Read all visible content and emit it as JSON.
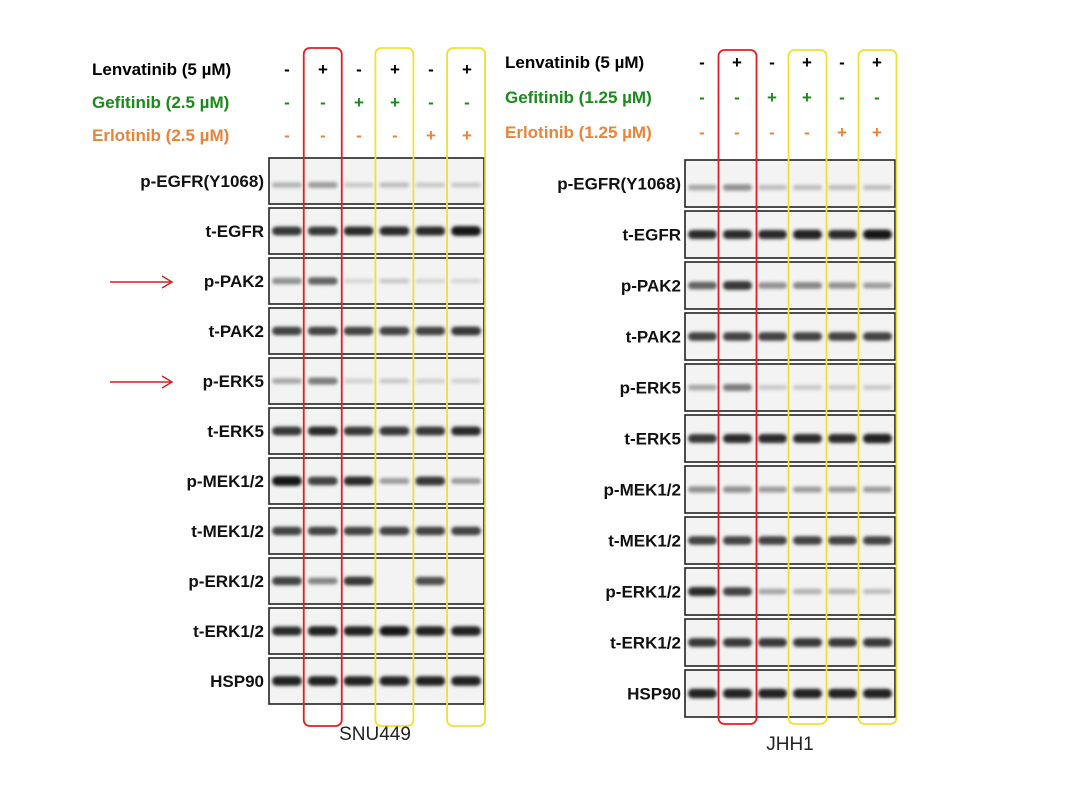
{
  "figure": {
    "colors": {
      "lenvatinib": "#000000",
      "gefitinib": "#1a8a1a",
      "erlotinib": "#e8843a",
      "red_box": "#e02020",
      "yellow_box": "#f0e030",
      "arrow": "#d02020"
    },
    "panels": [
      {
        "cell_line": "SNU449",
        "treatments": [
          {
            "label": "Lenvatinib (5 µM)",
            "color": "lenvatinib",
            "signs": [
              "-",
              "+",
              "-",
              "+",
              "-",
              "+"
            ]
          },
          {
            "label": "Gefitinib (2.5 µM)",
            "color": "gefitinib",
            "signs": [
              "-",
              "-",
              "+",
              "+",
              "-",
              "-"
            ]
          },
          {
            "label": "Erlotinib (2.5 µM)",
            "color": "erlotinib",
            "signs": [
              "-",
              "-",
              "-",
              "-",
              "+",
              "+"
            ]
          }
        ],
        "blots": [
          {
            "label": "p-EGFR(Y1068)",
            "intensity": [
              0.25,
              0.35,
              0.15,
              0.2,
              0.15,
              0.15
            ]
          },
          {
            "label": "t-EGFR",
            "intensity": [
              0.8,
              0.8,
              0.85,
              0.85,
              0.85,
              0.95
            ]
          },
          {
            "label": "p-PAK2",
            "intensity": [
              0.4,
              0.6,
              0.1,
              0.15,
              0.1,
              0.1
            ]
          },
          {
            "label": "t-PAK2",
            "intensity": [
              0.75,
              0.75,
              0.75,
              0.75,
              0.75,
              0.8
            ]
          },
          {
            "label": "p-ERK5",
            "intensity": [
              0.3,
              0.5,
              0.12,
              0.15,
              0.12,
              0.12
            ]
          },
          {
            "label": "t-ERK5",
            "intensity": [
              0.8,
              0.85,
              0.8,
              0.8,
              0.8,
              0.85
            ]
          },
          {
            "label": "p-MEK1/2",
            "intensity": [
              0.95,
              0.75,
              0.85,
              0.35,
              0.8,
              0.35
            ]
          },
          {
            "label": "t-MEK1/2",
            "intensity": [
              0.75,
              0.75,
              0.75,
              0.75,
              0.75,
              0.75
            ]
          },
          {
            "label": "p-ERK1/2",
            "intensity": [
              0.75,
              0.45,
              0.8,
              0.0,
              0.7,
              0.0
            ]
          },
          {
            "label": "t-ERK1/2",
            "intensity": [
              0.85,
              0.9,
              0.9,
              0.95,
              0.9,
              0.9
            ]
          },
          {
            "label": "HSP90",
            "intensity": [
              0.9,
              0.9,
              0.9,
              0.9,
              0.9,
              0.9
            ]
          }
        ],
        "arrows_at": [
          "p-PAK2",
          "p-ERK5"
        ]
      },
      {
        "cell_line": "JHH1",
        "treatments": [
          {
            "label": "Lenvatinib (5 µM)",
            "color": "lenvatinib",
            "signs": [
              "-",
              "+",
              "-",
              "+",
              "-",
              "+"
            ]
          },
          {
            "label": "Gefitinib (1.25 µM)",
            "color": "gefitinib",
            "signs": [
              "-",
              "-",
              "+",
              "+",
              "-",
              "-"
            ]
          },
          {
            "label": "Erlotinib (1.25 µM)",
            "color": "erlotinib",
            "signs": [
              "-",
              "-",
              "-",
              "-",
              "+",
              "+"
            ]
          }
        ],
        "blots": [
          {
            "label": "p-EGFR(Y1068)",
            "intensity": [
              0.3,
              0.4,
              0.2,
              0.2,
              0.2,
              0.2
            ]
          },
          {
            "label": "t-EGFR",
            "intensity": [
              0.85,
              0.85,
              0.85,
              0.9,
              0.85,
              0.95
            ]
          },
          {
            "label": "p-PAK2",
            "intensity": [
              0.6,
              0.8,
              0.4,
              0.45,
              0.4,
              0.35
            ]
          },
          {
            "label": "t-PAK2",
            "intensity": [
              0.75,
              0.75,
              0.75,
              0.75,
              0.75,
              0.75
            ]
          },
          {
            "label": "p-ERK5",
            "intensity": [
              0.3,
              0.5,
              0.15,
              0.15,
              0.15,
              0.15
            ]
          },
          {
            "label": "t-ERK5",
            "intensity": [
              0.8,
              0.85,
              0.85,
              0.85,
              0.85,
              0.9
            ]
          },
          {
            "label": "p-MEK1/2",
            "intensity": [
              0.4,
              0.4,
              0.35,
              0.35,
              0.35,
              0.35
            ]
          },
          {
            "label": "t-MEK1/2",
            "intensity": [
              0.75,
              0.75,
              0.75,
              0.75,
              0.75,
              0.75
            ]
          },
          {
            "label": "p-ERK1/2",
            "intensity": [
              0.85,
              0.75,
              0.3,
              0.25,
              0.25,
              0.2
            ]
          },
          {
            "label": "t-ERK1/2",
            "intensity": [
              0.8,
              0.8,
              0.8,
              0.8,
              0.8,
              0.8
            ]
          },
          {
            "label": "HSP90",
            "intensity": [
              0.9,
              0.9,
              0.9,
              0.9,
              0.9,
              0.9
            ]
          }
        ],
        "arrows_at": []
      }
    ]
  }
}
